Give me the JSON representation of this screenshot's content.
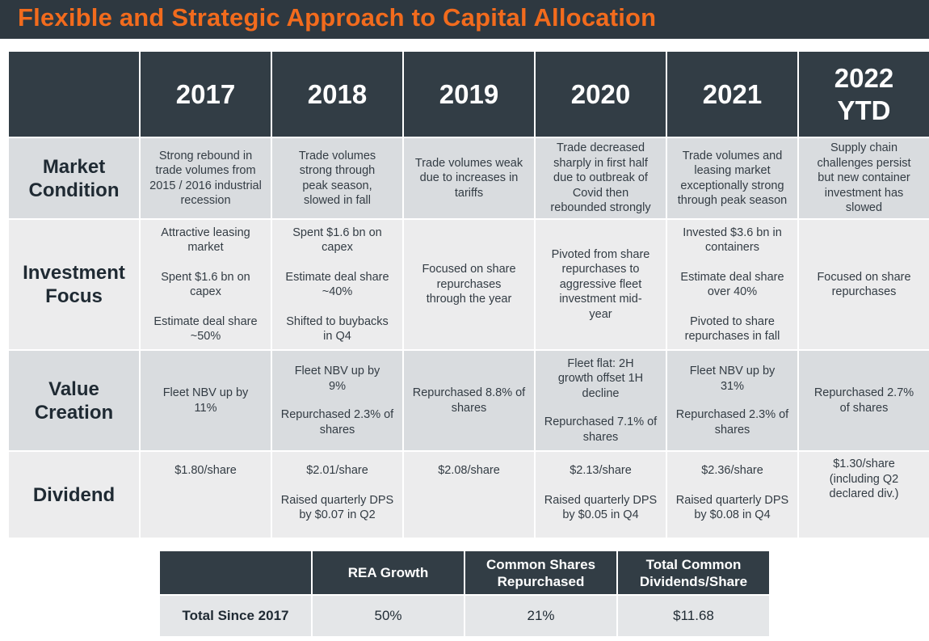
{
  "title": "Flexible and Strategic Approach to Capital Allocation",
  "years": [
    "2017",
    "2018",
    "2019",
    "2020",
    "2021",
    "2022 YTD"
  ],
  "rows": {
    "market_condition": {
      "label": "Market Condition",
      "cells": [
        [
          "Strong rebound in trade volumes from 2015 / 2016 industrial recession"
        ],
        [
          "Trade volumes strong through peak season, slowed in fall"
        ],
        [
          "Trade volumes weak due to increases in tariffs"
        ],
        [
          "Trade decreased sharply in first half due to outbreak of Covid then rebounded strongly"
        ],
        [
          "Trade volumes and leasing market exceptionally strong through peak season"
        ],
        [
          "Supply chain challenges persist but new container investment has slowed"
        ]
      ]
    },
    "investment_focus": {
      "label": "Investment Focus",
      "cells": [
        [
          "Attractive leasing market",
          "Spent $1.6 bn on capex",
          "Estimate deal share ~50%"
        ],
        [
          "Spent $1.6 bn on capex",
          "Estimate deal share ~40%",
          "Shifted to buybacks in Q4"
        ],
        [
          "Focused on share repurchases through the year"
        ],
        [
          "Pivoted from share repurchases to aggressive fleet investment mid-year"
        ],
        [
          "Invested $3.6 bn in containers",
          "Estimate deal share over 40%",
          "Pivoted to share repurchases in fall"
        ],
        [
          "Focused on share repurchases"
        ]
      ]
    },
    "value_creation": {
      "label": "Value Creation",
      "cells": [
        [
          "Fleet NBV up by 11%"
        ],
        [
          "Fleet NBV up by 9%",
          "Repurchased 2.3% of shares"
        ],
        [
          "Repurchased 8.8% of shares"
        ],
        [
          "Fleet flat: 2H growth offset 1H decline",
          "Repurchased 7.1% of shares"
        ],
        [
          "Fleet NBV up by 31%",
          "Repurchased 2.3% of shares"
        ],
        [
          "Repurchased 2.7% of shares"
        ]
      ]
    },
    "dividend": {
      "label": "Dividend",
      "cells": [
        [
          "$1.80/share"
        ],
        [
          "$2.01/share",
          "Raised quarterly DPS by $0.07 in Q2"
        ],
        [
          "$2.08/share"
        ],
        [
          "$2.13/share",
          "Raised quarterly DPS by $0.05 in Q4"
        ],
        [
          "$2.36/share",
          "Raised quarterly DPS by $0.08 in Q4"
        ],
        [
          "$1.30/share (including Q2 declared div.)"
        ]
      ]
    }
  },
  "summary": {
    "headers": [
      "REA Growth",
      "Common Shares Repurchased",
      "Total Common Dividends/Share"
    ],
    "row_label": "Total Since 2017",
    "values": [
      "50%",
      "21%",
      "$11.68"
    ]
  },
  "colors": {
    "title_bg": "#2e3840",
    "title_text": "#f26b1d",
    "header_bg": "#323d45",
    "row_shade_dark": "#d9dcdf",
    "row_shade_light": "#ececed"
  }
}
